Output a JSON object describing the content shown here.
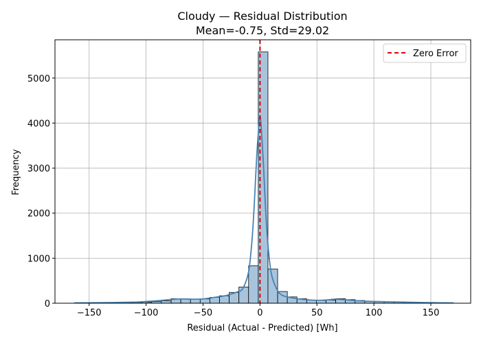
{
  "chart_data": {
    "type": "bar",
    "title": "Cloudy — Residual Distribution",
    "subtitle": "Mean=-0.75, Std=29.02",
    "xlabel": "Residual (Actual - Predicted) [Wh]",
    "ylabel": "Frequency",
    "xlim": [
      -180,
      185
    ],
    "ylim": [
      0,
      5850
    ],
    "xticks": [
      -150,
      -100,
      -50,
      0,
      50,
      100,
      150
    ],
    "yticks": [
      0,
      1000,
      2000,
      3000,
      4000,
      5000
    ],
    "grid": true,
    "legend_position": "top-right",
    "bin_edges": [
      -163,
      -154.5,
      -146,
      -137.5,
      -129,
      -120.5,
      -112,
      -103.5,
      -95,
      -86.5,
      -78,
      -69.5,
      -61,
      -52.5,
      -44,
      -35.5,
      -27,
      -18.5,
      -10,
      -1.5,
      7,
      15.5,
      24,
      32.5,
      41,
      49.5,
      58,
      66.5,
      75,
      83.5,
      92,
      100.5,
      109,
      117.5,
      126,
      134.5,
      143,
      151.5,
      160,
      168.5
    ],
    "counts": [
      5,
      5,
      6,
      8,
      10,
      12,
      18,
      25,
      35,
      55,
      100,
      95,
      90,
      95,
      130,
      165,
      240,
      360,
      830,
      5580,
      760,
      260,
      140,
      100,
      70,
      60,
      70,
      100,
      80,
      60,
      45,
      35,
      30,
      25,
      20,
      15,
      10,
      5,
      3
    ],
    "kde": {
      "x": [
        -163,
        -150,
        -130,
        -110,
        -100,
        -90,
        -80,
        -70,
        -60,
        -50,
        -40,
        -30,
        -20,
        -15,
        -10,
        -7,
        -5,
        -3,
        -1,
        0,
        1,
        3,
        5,
        7,
        10,
        15,
        20,
        30,
        40,
        50,
        60,
        66,
        75,
        85,
        100,
        115,
        130,
        150,
        170
      ],
      "y": [
        8,
        10,
        15,
        25,
        38,
        55,
        80,
        95,
        90,
        95,
        130,
        170,
        250,
        330,
        700,
        1400,
        2200,
        3200,
        3950,
        4150,
        3950,
        3100,
        2050,
        1300,
        650,
        300,
        170,
        110,
        80,
        65,
        75,
        90,
        75,
        55,
        40,
        30,
        22,
        12,
        8
      ],
      "color": "#4682b4"
    },
    "bar_fill": "#a8c4dc",
    "bar_edge": "#000000",
    "series": [
      {
        "name": "Zero Error",
        "x": 0,
        "style": "dashed",
        "color": "#dd0000"
      }
    ]
  }
}
